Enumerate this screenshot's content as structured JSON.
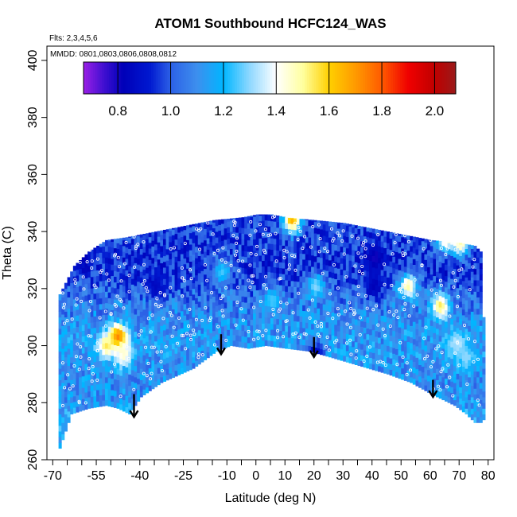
{
  "chart_data": {
    "type": "heatmap",
    "title": "ATOM1 Southbound HCFC124_WAS",
    "annotations": {
      "flights": "Flts: 2,3,4,5,6",
      "dates": "MMDD: 0801,0803,0806,0808,0812"
    },
    "xlabel": "Latitude (deg N)",
    "ylabel": "Theta (C)",
    "xlim": [
      -72,
      82
    ],
    "ylim": [
      260,
      405
    ],
    "x_ticks": [
      -70,
      -55,
      -40,
      -25,
      -10,
      0,
      10,
      20,
      30,
      40,
      50,
      60,
      70,
      80
    ],
    "x_minor_ticks": [
      -65,
      -60,
      -50,
      -45,
      -35,
      -30,
      -20,
      -15,
      -5,
      5,
      15,
      25,
      35,
      45,
      55,
      65,
      75
    ],
    "y_ticks": [
      260,
      280,
      300,
      320,
      340,
      360,
      380,
      400
    ],
    "colorbar": {
      "range": [
        0.67,
        2.08
      ],
      "ticks": [
        0.8,
        1.0,
        1.2,
        1.4,
        1.6,
        1.8,
        2.0
      ],
      "tick_labels": [
        "0.8",
        "1.0",
        "1.2",
        "1.4",
        "1.6",
        "1.8",
        "2.0"
      ],
      "stops": [
        {
          "v": 0.67,
          "c": "#9a1fe6"
        },
        {
          "v": 0.75,
          "c": "#3d0fd0"
        },
        {
          "v": 0.82,
          "c": "#0000b8"
        },
        {
          "v": 0.92,
          "c": "#0018d0"
        },
        {
          "v": 1.0,
          "c": "#2c60e6"
        },
        {
          "v": 1.1,
          "c": "#3d8fee"
        },
        {
          "v": 1.2,
          "c": "#00b6ff"
        },
        {
          "v": 1.3,
          "c": "#8fd8ff"
        },
        {
          "v": 1.4,
          "c": "#ffffff"
        },
        {
          "v": 1.5,
          "c": "#ffffa0"
        },
        {
          "v": 1.6,
          "c": "#ffd000"
        },
        {
          "v": 1.7,
          "c": "#ff9a00"
        },
        {
          "v": 1.8,
          "c": "#ff5a00"
        },
        {
          "v": 1.9,
          "c": "#f00000"
        },
        {
          "v": 2.0,
          "c": "#c00000"
        },
        {
          "v": 2.08,
          "c": "#9a1a1a"
        }
      ]
    },
    "top_boundary": [
      [
        -68,
        318
      ],
      [
        -66,
        322
      ],
      [
        -63,
        328
      ],
      [
        -58,
        333
      ],
      [
        -52,
        337
      ],
      [
        -45,
        338
      ],
      [
        -35,
        340
      ],
      [
        -25,
        342
      ],
      [
        -15,
        344
      ],
      [
        -5,
        345
      ],
      [
        0,
        346
      ],
      [
        5,
        346
      ],
      [
        10,
        345
      ],
      [
        20,
        344
      ],
      [
        30,
        343
      ],
      [
        40,
        341
      ],
      [
        50,
        339
      ],
      [
        60,
        337
      ],
      [
        70,
        336
      ],
      [
        75,
        335
      ],
      [
        77,
        333
      ]
    ],
    "bottom_boundary": [
      [
        -68,
        264
      ],
      [
        -64,
        276
      ],
      [
        -58,
        278
      ],
      [
        -52,
        279
      ],
      [
        -48,
        278
      ],
      [
        -44,
        276
      ],
      [
        -40,
        282
      ],
      [
        -33,
        287
      ],
      [
        -22,
        292
      ],
      [
        -14,
        298
      ],
      [
        -9,
        300
      ],
      [
        -3,
        299
      ],
      [
        3,
        300
      ],
      [
        10,
        299
      ],
      [
        18,
        298
      ],
      [
        25,
        296
      ],
      [
        35,
        293
      ],
      [
        45,
        290
      ],
      [
        53,
        287
      ],
      [
        60,
        283
      ],
      [
        64,
        281
      ],
      [
        68,
        279
      ],
      [
        72,
        276
      ],
      [
        75,
        273
      ],
      [
        77,
        273
      ],
      [
        79,
        275
      ],
      [
        79,
        310
      ]
    ],
    "base_value_profile": [
      {
        "theta": 335,
        "value": 0.96
      },
      {
        "theta": 325,
        "value": 0.94
      },
      {
        "theta": 315,
        "value": 1.05
      },
      {
        "theta": 305,
        "value": 1.12
      },
      {
        "theta": 295,
        "value": 1.13
      },
      {
        "theta": 285,
        "value": 1.1
      },
      {
        "theta": 275,
        "value": 1.15
      }
    ],
    "features": [
      {
        "lat": -48,
        "theta": 302,
        "value": 1.8
      },
      {
        "lat": -52,
        "theta": 299,
        "value": 1.55
      },
      {
        "lat": -46,
        "theta": 296,
        "value": 1.45
      },
      {
        "lat": 12,
        "theta": 343,
        "value": 1.65
      },
      {
        "lat": 63,
        "theta": 313,
        "value": 1.55
      },
      {
        "lat": 52,
        "theta": 320,
        "value": 1.5
      },
      {
        "lat": 65,
        "theta": 336,
        "value": 1.45
      },
      {
        "lat": 70,
        "theta": 335,
        "value": 1.5
      },
      {
        "lat": 69,
        "theta": 300,
        "value": 1.35
      },
      {
        "lat": 72,
        "theta": 295,
        "value": 1.3
      },
      {
        "lat": 20,
        "theta": 320,
        "value": 1.3
      },
      {
        "lat": 40,
        "theta": 330,
        "value": 0.8
      },
      {
        "lat": 40,
        "theta": 320,
        "value": 0.82
      },
      {
        "lat": -60,
        "theta": 330,
        "value": 0.82
      },
      {
        "lat": -35,
        "theta": 320,
        "value": 0.85
      },
      {
        "lat": 20,
        "theta": 296,
        "value": 0.85
      },
      {
        "lat": 5,
        "theta": 315,
        "value": 1.25
      },
      {
        "lat": -12,
        "theta": 325,
        "value": 1.25
      }
    ],
    "arrows": [
      {
        "lat": -42,
        "theta_top": 283,
        "theta_tip": 275
      },
      {
        "lat": -12,
        "theta_top": 304,
        "theta_tip": 297
      },
      {
        "lat": 20,
        "theta_top": 303,
        "theta_tip": 296
      },
      {
        "lat": 61,
        "theta_top": 288,
        "theta_tip": 282
      }
    ]
  }
}
